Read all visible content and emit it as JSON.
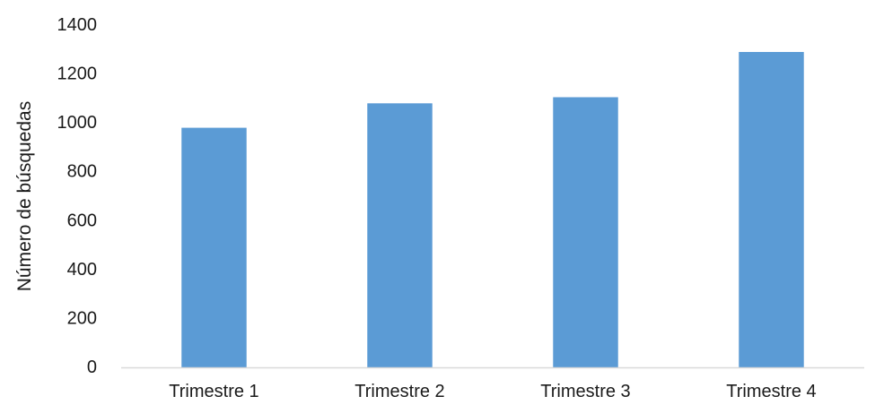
{
  "chart_data": {
    "type": "bar",
    "title": "",
    "xlabel": "",
    "ylabel": "Número de búsquedas",
    "categories": [
      "Trimestre 1",
      "Trimestre 2",
      "Trimestre 3",
      "Trimestre 4"
    ],
    "values": [
      980,
      1080,
      1105,
      1290
    ],
    "ylim": [
      0,
      1400
    ],
    "yticks": [
      0,
      200,
      400,
      600,
      800,
      1000,
      1200,
      1400
    ],
    "grid": false,
    "legend": "none",
    "bar_color": "#5b9bd5",
    "axis_color": "#d9d9d9"
  }
}
